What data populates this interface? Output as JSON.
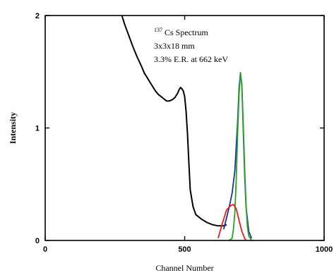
{
  "chart_data": {
    "type": "line",
    "xlabel": "Channel Number",
    "ylabel": "Intensity",
    "xlim": [
      0,
      1000
    ],
    "ylim": [
      0,
      2
    ],
    "x_ticks": [
      0,
      500,
      1000
    ],
    "x_tick_labels": [
      "0",
      "500",
      "1000"
    ],
    "y_ticks": [
      0,
      1,
      2
    ],
    "y_tick_labels": [
      "0",
      "1",
      "2"
    ],
    "grid": false,
    "legend": "none",
    "annotation": {
      "line1_superscript": "137",
      "line1_text": "Cs Spectrum",
      "line2": "3x3x18 mm",
      "line3": "3.3% E.R. at 662 keV"
    },
    "series": [
      {
        "color": "#000000",
        "x": [
          275,
          285,
          300,
          315,
          330,
          345,
          355,
          365,
          375,
          385,
          395,
          405,
          415,
          425,
          435,
          445,
          455,
          465,
          475,
          480,
          485,
          490,
          495,
          500,
          505,
          510,
          515,
          520,
          530,
          540,
          560,
          580,
          600,
          620,
          640,
          650
        ],
        "y": [
          2.0,
          1.92,
          1.82,
          1.72,
          1.63,
          1.55,
          1.49,
          1.45,
          1.41,
          1.37,
          1.33,
          1.3,
          1.28,
          1.26,
          1.24,
          1.24,
          1.25,
          1.27,
          1.31,
          1.34,
          1.36,
          1.35,
          1.33,
          1.28,
          1.15,
          0.95,
          0.7,
          0.45,
          0.3,
          0.23,
          0.19,
          0.16,
          0.14,
          0.13,
          0.13,
          0.14
        ]
      },
      {
        "color": "#1f2f9a",
        "x": [
          640,
          650,
          660,
          670,
          680,
          690,
          695,
          700,
          705,
          710,
          715,
          720,
          730,
          740
        ],
        "y": [
          0.1,
          0.2,
          0.3,
          0.42,
          0.62,
          1.05,
          1.35,
          1.49,
          1.38,
          1.0,
          0.6,
          0.3,
          0.08,
          0.02
        ]
      },
      {
        "color": "#2aa02a",
        "x": [
          660,
          670,
          675,
          680,
          685,
          690,
          695,
          700,
          705,
          710,
          715,
          720,
          725,
          730,
          740
        ],
        "y": [
          0.0,
          0.02,
          0.1,
          0.25,
          0.55,
          0.95,
          1.3,
          1.48,
          1.38,
          1.05,
          0.65,
          0.32,
          0.12,
          0.04,
          0.0
        ]
      },
      {
        "color": "#e02020",
        "x": [
          620,
          635,
          650,
          665,
          675,
          685,
          695,
          705,
          715,
          720
        ],
        "y": [
          0.02,
          0.15,
          0.27,
          0.31,
          0.32,
          0.28,
          0.18,
          0.08,
          0.02,
          0.0
        ]
      }
    ]
  }
}
